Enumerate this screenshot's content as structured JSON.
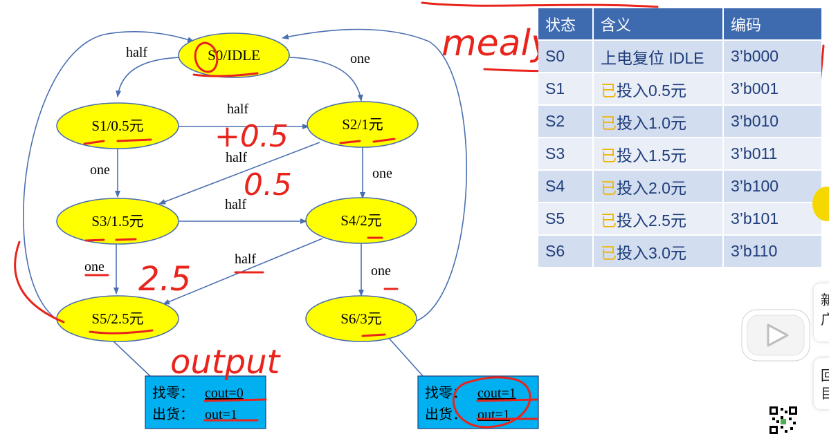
{
  "diagram": {
    "states": [
      {
        "id": "S0",
        "label": "S0/IDLE"
      },
      {
        "id": "S1",
        "label": "S1/0.5元"
      },
      {
        "id": "S2",
        "label": "S2/1元"
      },
      {
        "id": "S3",
        "label": "S3/1.5元"
      },
      {
        "id": "S4",
        "label": "S4/2元"
      },
      {
        "id": "S5",
        "label": "S5/2.5元"
      },
      {
        "id": "S6",
        "label": "S6/3元"
      }
    ],
    "edge_labels": {
      "s0_s1": "half",
      "s0_s2": "one",
      "s1_s2": "half",
      "s2_s3": "half",
      "s1_s3": "one",
      "s2_s4": "one",
      "s3_s4": "half",
      "s3_s5": "one",
      "s4_s5": "half",
      "s4_s6": "one"
    },
    "output_boxes": [
      {
        "line1_prefix": "找零：",
        "line1_value": "cout=0",
        "line2_prefix": "出货：",
        "line2_value": "out=1"
      },
      {
        "line1_prefix": "找零：",
        "line1_value": "cout=1",
        "line2_prefix": "出货：",
        "line2_value": "out=1"
      }
    ],
    "colors": {
      "node_fill": "#ffff00",
      "node_stroke": "#4a6fb0",
      "box_fill": "#00b0f0",
      "edge": "#4a6fb0",
      "ink": "#e8241c"
    }
  },
  "table": {
    "headers": [
      "状态",
      "含义",
      "编码"
    ],
    "rows": [
      {
        "state": "S0",
        "meaning": "上电复位 IDLE",
        "code": "3’b000"
      },
      {
        "state": "S1",
        "mark": "已",
        "meaning": "投入0.5元",
        "code": "3’b001"
      },
      {
        "state": "S2",
        "mark": "已",
        "meaning": "投入1.0元",
        "code": "3’b010"
      },
      {
        "state": "S3",
        "mark": "已",
        "meaning": "投入1.5元",
        "code": "3’b011"
      },
      {
        "state": "S4",
        "mark": "已",
        "meaning": "投入2.0元",
        "code": "3’b100"
      },
      {
        "state": "S5",
        "mark": "已",
        "meaning": "投入2.5元",
        "code": "3’b101"
      },
      {
        "state": "S6",
        "mark": "已",
        "meaning": "投入3.0元",
        "code": "3’b110"
      }
    ]
  },
  "annotations": {
    "mealy_fsm": "mealy FSM",
    "plus_half": "+0.5",
    "minus_half": "0.5",
    "two_five": "2.5",
    "output": "output"
  },
  "overlay": {
    "side_card_1": "新 广",
    "side_card_2": "回 目",
    "play_icon": "play-icon",
    "qr_icon": "qr-code-icon"
  }
}
